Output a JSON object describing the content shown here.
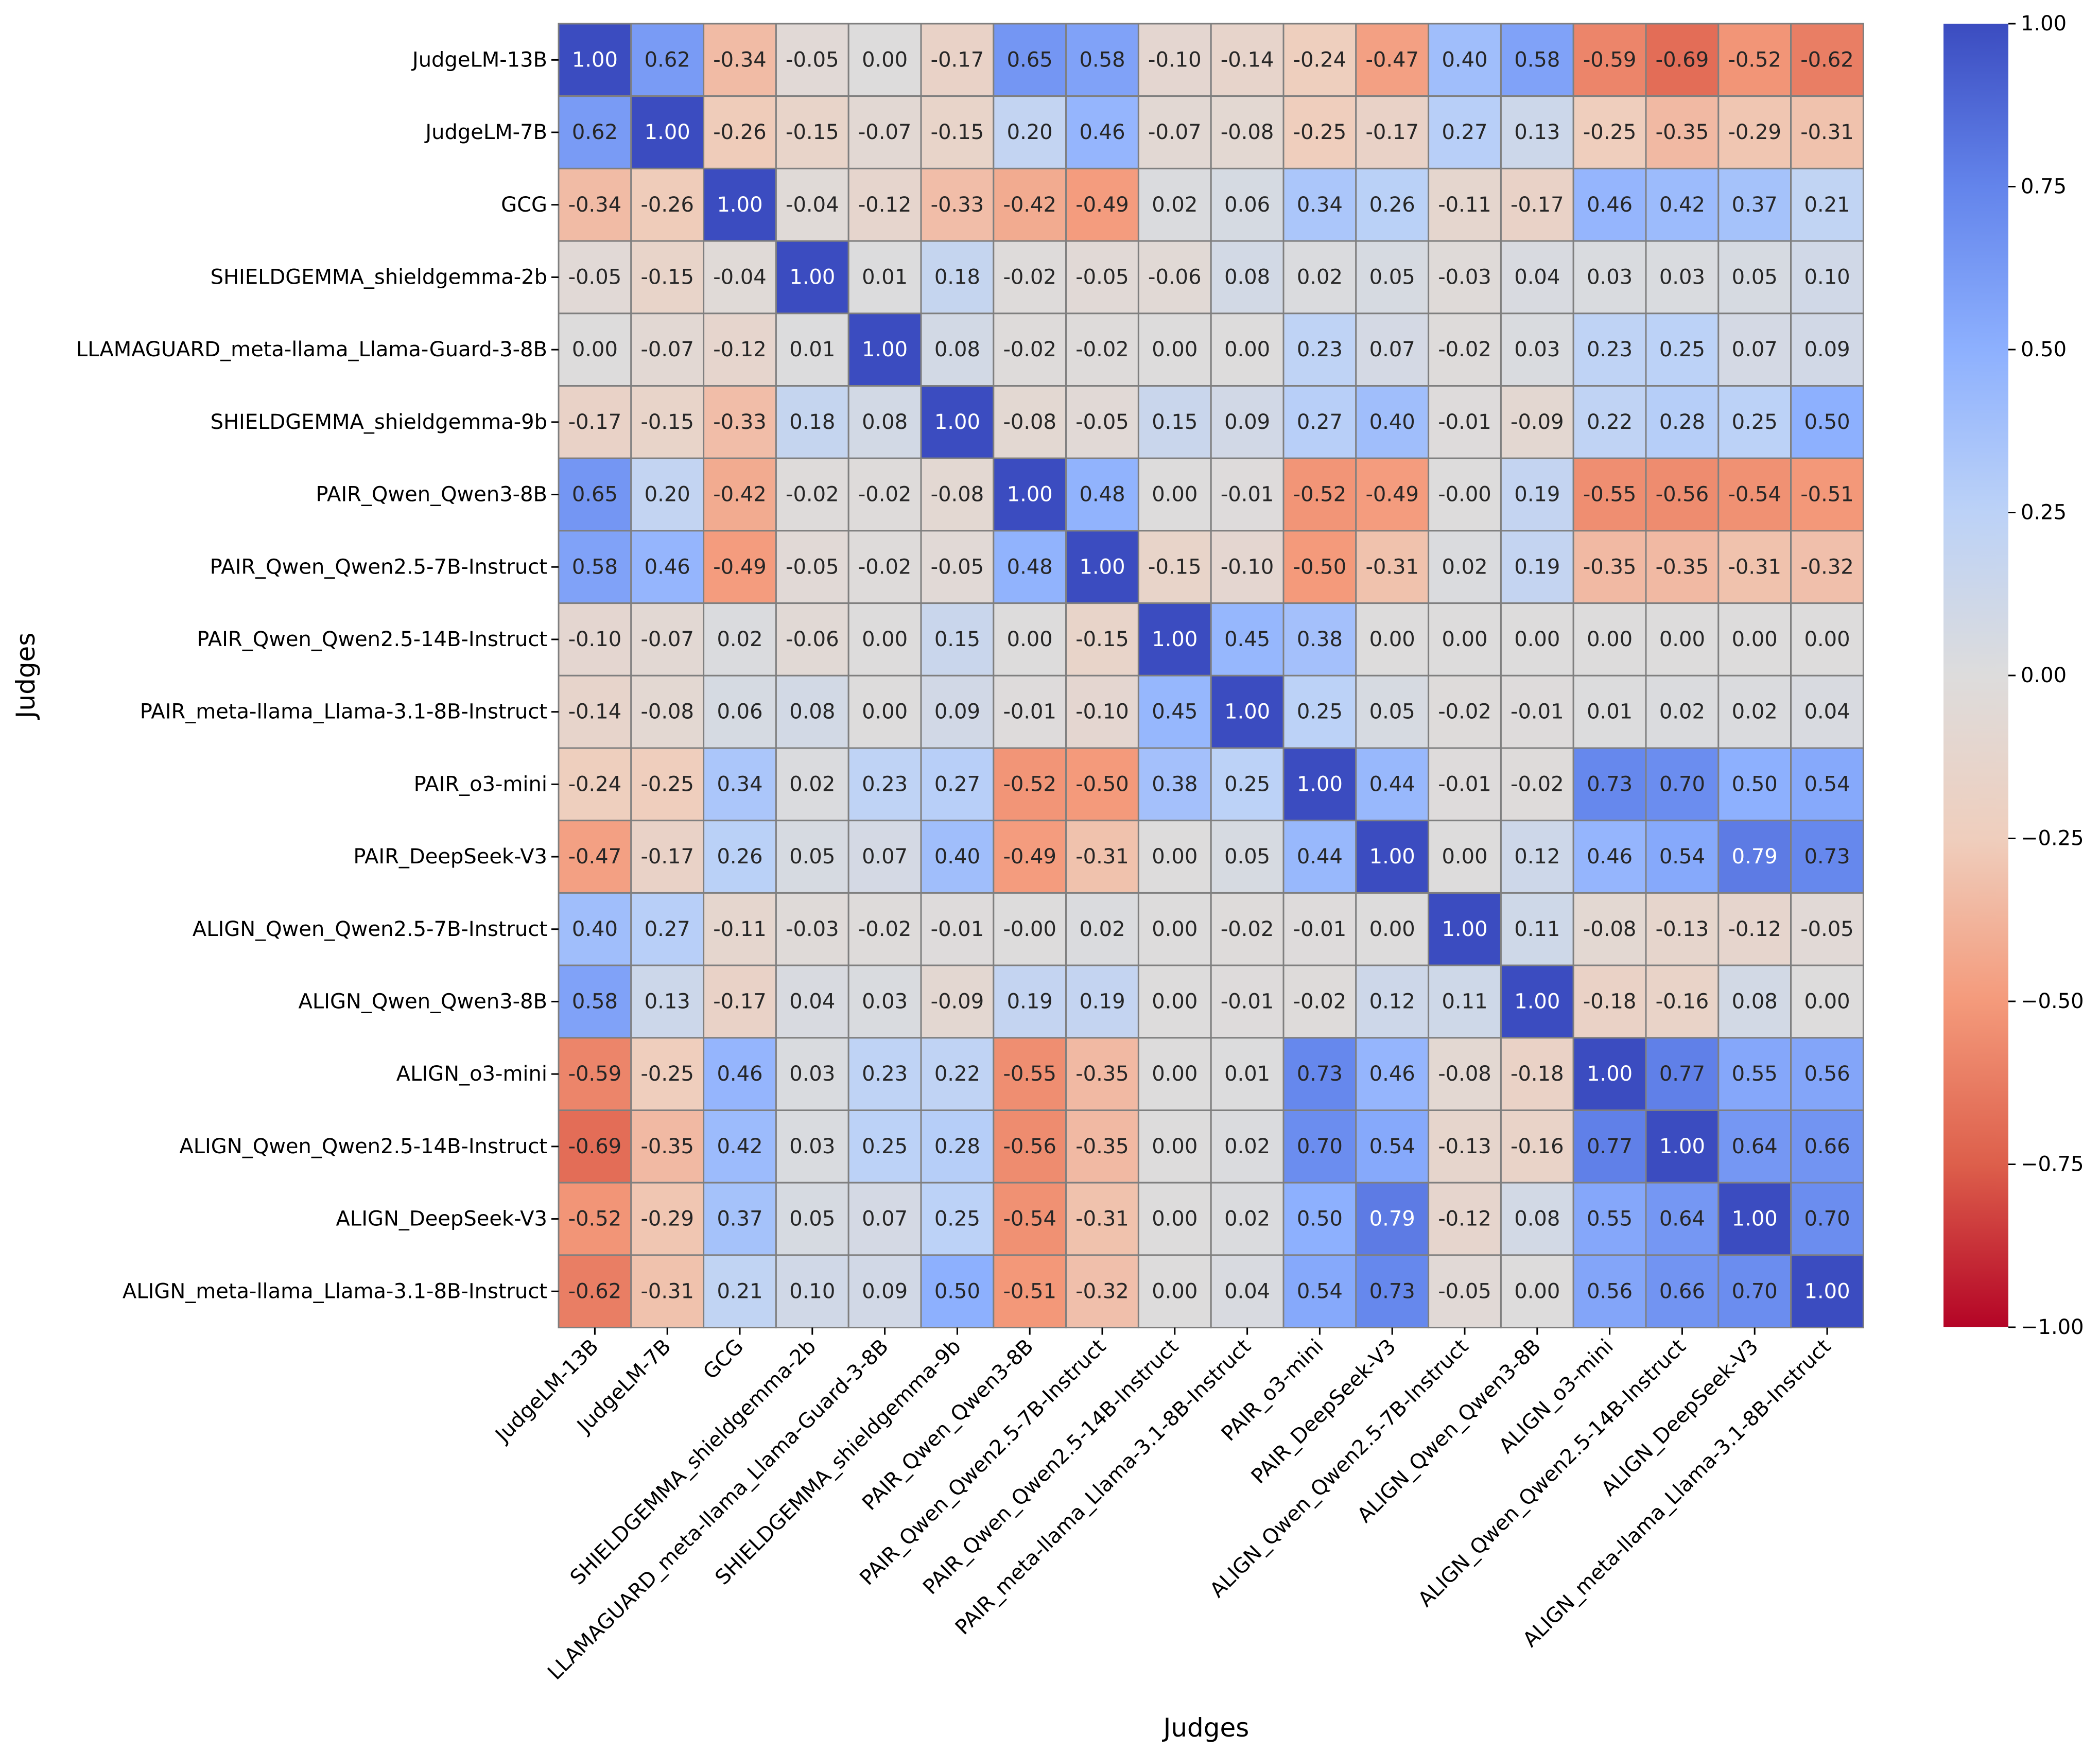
{
  "chart_data": {
    "type": "heatmap",
    "title": "",
    "xlabel": "Judges",
    "ylabel": "Judges",
    "colormap": "coolwarm",
    "vmin": -1.0,
    "vmax": 1.0,
    "colormap_stops": [
      "#b40426",
      "#dddcdc",
      "#3b4cc0"
    ],
    "labels": [
      "JudgeLM-13B",
      "JudgeLM-7B",
      "GCG",
      "SHIELDGEMMA_shieldgemma-2b",
      "LLAMAGUARD_meta-llama_Llama-Guard-3-8B",
      "SHIELDGEMMA_shieldgemma-9b",
      "PAIR_Qwen_Qwen3-8B",
      "PAIR_Qwen_Qwen2.5-7B-Instruct",
      "PAIR_Qwen_Qwen2.5-14B-Instruct",
      "PAIR_meta-llama_Llama-3.1-8B-Instruct",
      "PAIR_o3-mini",
      "PAIR_DeepSeek-V3",
      "ALIGN_Qwen_Qwen2.5-7B-Instruct",
      "ALIGN_Qwen_Qwen3-8B",
      "ALIGN_o3-mini",
      "ALIGN_Qwen_Qwen2.5-14B-Instruct",
      "ALIGN_DeepSeek-V3",
      "ALIGN_meta-llama_Llama-3.1-8B-Instruct"
    ],
    "matrix_display": [
      [
        "1.00",
        "0.62",
        "-0.34",
        "-0.05",
        "0.00",
        "-0.17",
        "0.65",
        "0.58",
        "-0.10",
        "-0.14",
        "-0.24",
        "-0.47",
        "0.40",
        "0.58",
        "-0.59",
        "-0.69",
        "-0.52",
        "-0.62"
      ],
      [
        "0.62",
        "1.00",
        "-0.26",
        "-0.15",
        "-0.07",
        "-0.15",
        "0.20",
        "0.46",
        "-0.07",
        "-0.08",
        "-0.25",
        "-0.17",
        "0.27",
        "0.13",
        "-0.25",
        "-0.35",
        "-0.29",
        "-0.31"
      ],
      [
        "-0.34",
        "-0.26",
        "1.00",
        "-0.04",
        "-0.12",
        "-0.33",
        "-0.42",
        "-0.49",
        "0.02",
        "0.06",
        "0.34",
        "0.26",
        "-0.11",
        "-0.17",
        "0.46",
        "0.42",
        "0.37",
        "0.21"
      ],
      [
        "-0.05",
        "-0.15",
        "-0.04",
        "1.00",
        "0.01",
        "0.18",
        "-0.02",
        "-0.05",
        "-0.06",
        "0.08",
        "0.02",
        "0.05",
        "-0.03",
        "0.04",
        "0.03",
        "0.03",
        "0.05",
        "0.10"
      ],
      [
        "0.00",
        "-0.07",
        "-0.12",
        "0.01",
        "1.00",
        "0.08",
        "-0.02",
        "-0.02",
        "0.00",
        "0.00",
        "0.23",
        "0.07",
        "-0.02",
        "0.03",
        "0.23",
        "0.25",
        "0.07",
        "0.09"
      ],
      [
        "-0.17",
        "-0.15",
        "-0.33",
        "0.18",
        "0.08",
        "1.00",
        "-0.08",
        "-0.05",
        "0.15",
        "0.09",
        "0.27",
        "0.40",
        "-0.01",
        "-0.09",
        "0.22",
        "0.28",
        "0.25",
        "0.50"
      ],
      [
        "0.65",
        "0.20",
        "-0.42",
        "-0.02",
        "-0.02",
        "-0.08",
        "1.00",
        "0.48",
        "0.00",
        "-0.01",
        "-0.52",
        "-0.49",
        "-0.00",
        "0.19",
        "-0.55",
        "-0.56",
        "-0.54",
        "-0.51"
      ],
      [
        "0.58",
        "0.46",
        "-0.49",
        "-0.05",
        "-0.02",
        "-0.05",
        "0.48",
        "1.00",
        "-0.15",
        "-0.10",
        "-0.50",
        "-0.31",
        "0.02",
        "0.19",
        "-0.35",
        "-0.35",
        "-0.31",
        "-0.32"
      ],
      [
        "-0.10",
        "-0.07",
        "0.02",
        "-0.06",
        "0.00",
        "0.15",
        "0.00",
        "-0.15",
        "1.00",
        "0.45",
        "0.38",
        "0.00",
        "0.00",
        "0.00",
        "0.00",
        "0.00",
        "0.00",
        "0.00"
      ],
      [
        "-0.14",
        "-0.08",
        "0.06",
        "0.08",
        "0.00",
        "0.09",
        "-0.01",
        "-0.10",
        "0.45",
        "1.00",
        "0.25",
        "0.05",
        "-0.02",
        "-0.01",
        "0.01",
        "0.02",
        "0.02",
        "0.04"
      ],
      [
        "-0.24",
        "-0.25",
        "0.34",
        "0.02",
        "0.23",
        "0.27",
        "-0.52",
        "-0.50",
        "0.38",
        "0.25",
        "1.00",
        "0.44",
        "-0.01",
        "-0.02",
        "0.73",
        "0.70",
        "0.50",
        "0.54"
      ],
      [
        "-0.47",
        "-0.17",
        "0.26",
        "0.05",
        "0.07",
        "0.40",
        "-0.49",
        "-0.31",
        "0.00",
        "0.05",
        "0.44",
        "1.00",
        "0.00",
        "0.12",
        "0.46",
        "0.54",
        "0.79",
        "0.73"
      ],
      [
        "0.40",
        "0.27",
        "-0.11",
        "-0.03",
        "-0.02",
        "-0.01",
        "-0.00",
        "0.02",
        "0.00",
        "-0.02",
        "-0.01",
        "0.00",
        "1.00",
        "0.11",
        "-0.08",
        "-0.13",
        "-0.12",
        "-0.05"
      ],
      [
        "0.58",
        "0.13",
        "-0.17",
        "0.04",
        "0.03",
        "-0.09",
        "0.19",
        "0.19",
        "0.00",
        "-0.01",
        "-0.02",
        "0.12",
        "0.11",
        "1.00",
        "-0.18",
        "-0.16",
        "0.08",
        "0.00"
      ],
      [
        "-0.59",
        "-0.25",
        "0.46",
        "0.03",
        "0.23",
        "0.22",
        "-0.55",
        "-0.35",
        "0.00",
        "0.01",
        "0.73",
        "0.46",
        "-0.08",
        "-0.18",
        "1.00",
        "0.77",
        "0.55",
        "0.56"
      ],
      [
        "-0.69",
        "-0.35",
        "0.42",
        "0.03",
        "0.25",
        "0.28",
        "-0.56",
        "-0.35",
        "0.00",
        "0.02",
        "0.70",
        "0.54",
        "-0.13",
        "-0.16",
        "0.77",
        "1.00",
        "0.64",
        "0.66"
      ],
      [
        "-0.52",
        "-0.29",
        "0.37",
        "0.05",
        "0.07",
        "0.25",
        "-0.54",
        "-0.31",
        "0.00",
        "0.02",
        "0.50",
        "0.79",
        "-0.12",
        "0.08",
        "0.55",
        "0.64",
        "1.00",
        "0.70"
      ],
      [
        "-0.62",
        "-0.31",
        "0.21",
        "0.10",
        "0.09",
        "0.50",
        "-0.51",
        "-0.32",
        "0.00",
        "0.04",
        "0.54",
        "0.73",
        "-0.05",
        "0.00",
        "0.56",
        "0.66",
        "0.70",
        "1.00"
      ]
    ],
    "colorbar": {
      "ticks": [
        1.0,
        0.75,
        0.5,
        0.25,
        0.0,
        -0.25,
        -0.5,
        -0.75,
        -1.0
      ],
      "tick_labels": [
        "1.00",
        "0.75",
        "0.50",
        "0.25",
        "0.00",
        "−0.25",
        "−0.50",
        "−0.75",
        "−1.00"
      ]
    }
  }
}
